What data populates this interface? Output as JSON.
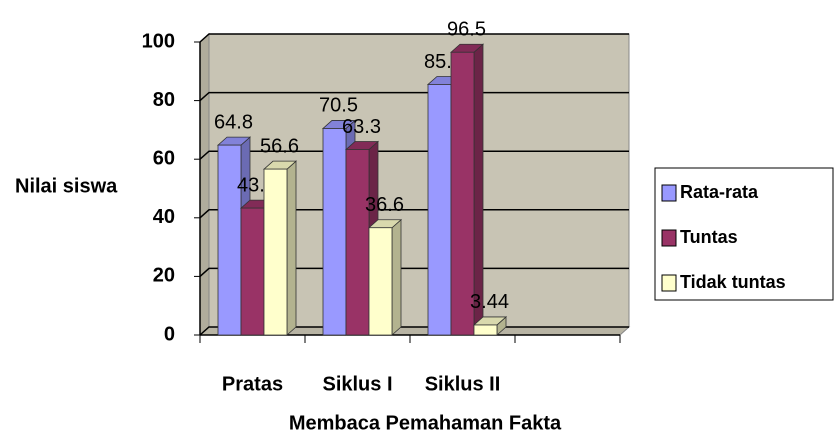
{
  "chart_data": {
    "type": "bar",
    "categories": [
      "Pratas",
      "Siklus I",
      "Siklus II",
      null
    ],
    "series": [
      {
        "name": "Rata-rata",
        "color": "#9999ff",
        "values": [
          64.8,
          70.5,
          85.5,
          null
        ]
      },
      {
        "name": "Tuntas",
        "color": "#993366",
        "values": [
          43.3,
          63.3,
          96.5,
          null
        ]
      },
      {
        "name": "Tidak tuntas",
        "color": "#ffffcc",
        "values": [
          56.6,
          36.6,
          3.44,
          null
        ]
      }
    ],
    "y_label": "Nilai siswa",
    "x_label": "Membaca Pemahaman Fakta",
    "ylim": [
      0,
      100
    ],
    "yticks": [
      0,
      20,
      40,
      60,
      80,
      100
    ],
    "grid": true,
    "legend": "right"
  }
}
